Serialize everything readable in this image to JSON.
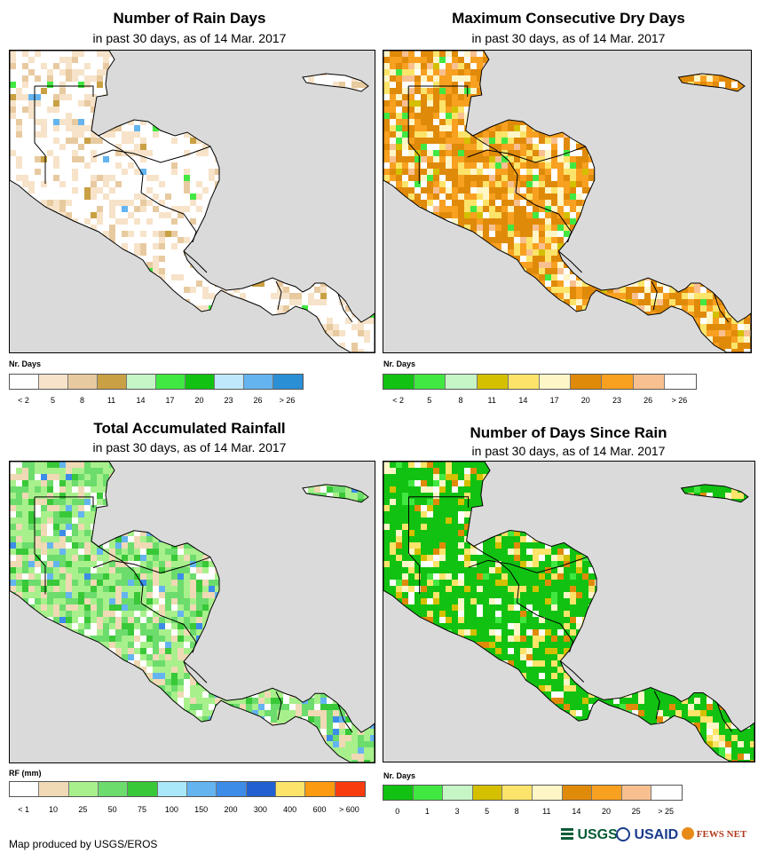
{
  "footer": {
    "credit": "Map produced by USGS/EROS"
  },
  "logos": {
    "usgs": "USGS",
    "usaid": "USAID",
    "fewsnet": "FEWS NET"
  },
  "panels": [
    {
      "title": "Number of Rain Days",
      "subtitle": "in past 30 days, as of 14 Mar. 2017",
      "legend_title": "Nr. Days",
      "colors": [
        "#ffffff",
        "#f7e3c9",
        "#e8caa0",
        "#c9a043",
        "#c6f5c6",
        "#42e842",
        "#12c212",
        "#bfe8fc",
        "#64b4f0",
        "#2b8fd6"
      ],
      "labels": [
        "< 2",
        "5",
        "8",
        "11",
        "14",
        "17",
        "20",
        "23",
        "26",
        "> 26"
      ],
      "scheme": "raindays"
    },
    {
      "title": "Maximum Consecutive Dry Days",
      "subtitle": "in past 30 days, as of 14 Mar. 2017",
      "legend_title": "Nr. Days",
      "colors": [
        "#12c212",
        "#42e842",
        "#c6f5c6",
        "#d4c000",
        "#fce46a",
        "#fff6c8",
        "#e08a0a",
        "#f8a020",
        "#f8c090",
        "#ffffff"
      ],
      "labels": [
        "< 2",
        "5",
        "8",
        "11",
        "14",
        "17",
        "20",
        "23",
        "26",
        "> 26"
      ],
      "scheme": "drydays"
    },
    {
      "title": "Total Accumulated Rainfall",
      "subtitle": "in past 30 days, as of 14 Mar. 2017",
      "legend_title": "RF (mm)",
      "colors": [
        "#ffffff",
        "#f0d9b5",
        "#a8f08c",
        "#6cdc6c",
        "#38c838",
        "#a8e8f8",
        "#64b4f0",
        "#3c8ce8",
        "#2060d0",
        "#fce46a",
        "#fc9a10",
        "#f83c10"
      ],
      "labels": [
        "< 1",
        "10",
        "25",
        "50",
        "75",
        "100",
        "150",
        "200",
        "300",
        "400",
        "600",
        "> 600"
      ],
      "scheme": "rainfall"
    },
    {
      "title": "Number of Days Since Rain",
      "subtitle": "in past 30 days, as of 14 Mar. 2017",
      "legend_title": "Nr. Days",
      "colors": [
        "#12c212",
        "#42e842",
        "#c6f5c6",
        "#d4c000",
        "#fce46a",
        "#fff6c8",
        "#e08a0a",
        "#f8a020",
        "#f8c090",
        "#ffffff"
      ],
      "labels": [
        "0",
        "1",
        "3",
        "5",
        "8",
        "11",
        "14",
        "20",
        "25",
        "> 25"
      ],
      "scheme": "sincerain"
    }
  ]
}
